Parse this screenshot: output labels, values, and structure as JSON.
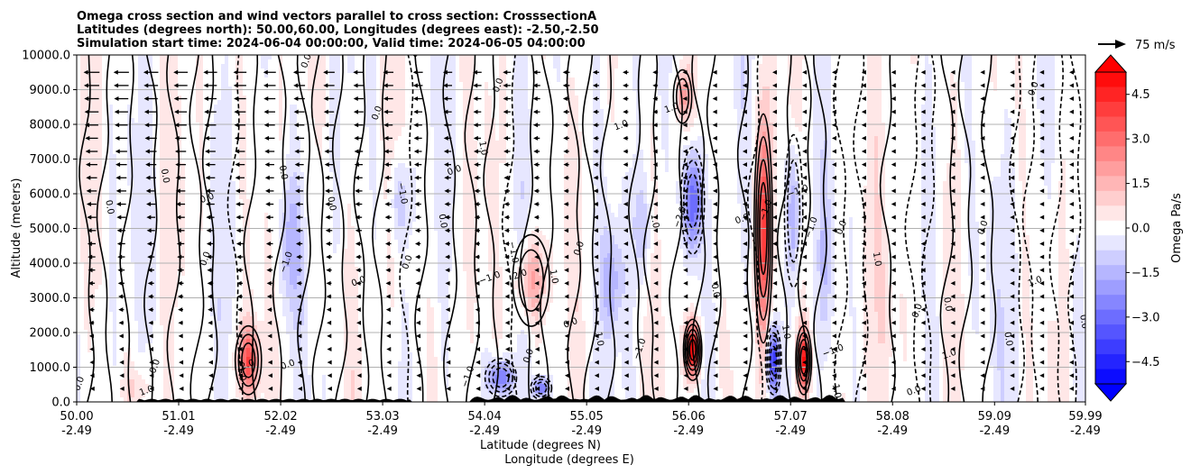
{
  "chart_data": {
    "type": "heatmap",
    "title_lines": [
      "Omega cross section and wind vectors parallel to cross section: CrosssectionA",
      "Latitudes (degrees north): 50.00,60.00, Longitudes (degrees east): -2.50,-2.50",
      "Simulation start time: 2024-06-04 00:00:00, Valid time: 2024-06-05 04:00:00"
    ],
    "ylabel": "Altitude (meters)",
    "xlabel": "Latitude (degrees N)",
    "xlabel2": "Longitude (degrees E)",
    "ylim": [
      0,
      10000
    ],
    "xlim": [
      50.0,
      59.99
    ],
    "y_ticks": [
      0,
      1000,
      2000,
      3000,
      4000,
      5000,
      6000,
      7000,
      8000,
      9000,
      10000
    ],
    "y_tick_labels": [
      "0.0",
      "1000.0",
      "2000.0",
      "3000.0",
      "4000.0",
      "5000.0",
      "6000.0",
      "7000.0",
      "8000.0",
      "9000.0",
      "10000.0"
    ],
    "x_ticks": [
      {
        "lat": 50.0,
        "lat_label": "50.00",
        "lon_label": "-2.49"
      },
      {
        "lat": 51.01,
        "lat_label": "51.01",
        "lon_label": "-2.49"
      },
      {
        "lat": 52.02,
        "lat_label": "52.02",
        "lon_label": "-2.49"
      },
      {
        "lat": 53.03,
        "lat_label": "53.03",
        "lon_label": "-2.49"
      },
      {
        "lat": 54.04,
        "lat_label": "54.04",
        "lon_label": "-2.49"
      },
      {
        "lat": 55.05,
        "lat_label": "55.05",
        "lon_label": "-2.49"
      },
      {
        "lat": 56.06,
        "lat_label": "56.06",
        "lon_label": "-2.49"
      },
      {
        "lat": 57.07,
        "lat_label": "57.07",
        "lon_label": "-2.49"
      },
      {
        "lat": 58.08,
        "lat_label": "58.08",
        "lon_label": "-2.49"
      },
      {
        "lat": 59.09,
        "lat_label": "59.09",
        "lon_label": "-2.49"
      },
      {
        "lat": 59.99,
        "lat_label": "59.99",
        "lon_label": "-2.49"
      }
    ],
    "grid": "horizontal",
    "colorbar": {
      "label": "Omega Pa/s",
      "range": [
        -5.25,
        5.25
      ],
      "levels": 21,
      "tick_values": [
        4.5,
        3.0,
        1.5,
        0.0,
        -1.5,
        -3.0,
        -4.5
      ],
      "tick_labels": [
        "4.5",
        "3.0",
        "1.5",
        "0.0",
        "−1.5",
        "−3.0",
        "−4.5"
      ],
      "low_color": "#0000ff",
      "high_color": "#ff0000",
      "mid_color": "#ffffff",
      "extend": "both"
    },
    "wind_key": {
      "label": "75 m/s",
      "speed": 75
    },
    "omega_features": [
      {
        "lat": 51.7,
        "alt_center": 1200,
        "alt_spread": 900,
        "width": 0.1,
        "value": 3.5
      },
      {
        "lat": 52.1,
        "alt_center": 4500,
        "alt_spread": 2000,
        "width": 0.12,
        "value": -1.5
      },
      {
        "lat": 53.2,
        "alt_center": 5800,
        "alt_spread": 1200,
        "width": 0.1,
        "value": -1.2
      },
      {
        "lat": 54.5,
        "alt_center": 3500,
        "alt_spread": 1200,
        "width": 0.14,
        "value": 2.0
      },
      {
        "lat": 54.2,
        "alt_center": 700,
        "alt_spread": 500,
        "width": 0.12,
        "value": -3.0
      },
      {
        "lat": 54.6,
        "alt_center": 400,
        "alt_spread": 300,
        "width": 0.08,
        "value": -3.0
      },
      {
        "lat": 55.3,
        "alt_center": 3500,
        "alt_spread": 1500,
        "width": 0.1,
        "value": -1.5
      },
      {
        "lat": 55.6,
        "alt_center": 5000,
        "alt_spread": 1500,
        "width": 0.1,
        "value": -1.2
      },
      {
        "lat": 56.1,
        "alt_center": 5800,
        "alt_spread": 1400,
        "width": 0.09,
        "value": -3.5
      },
      {
        "lat": 56.1,
        "alt_center": 1500,
        "alt_spread": 800,
        "width": 0.07,
        "value": 5.5
      },
      {
        "lat": 56.0,
        "alt_center": 8800,
        "alt_spread": 700,
        "width": 0.07,
        "value": 2.0
      },
      {
        "lat": 56.8,
        "alt_center": 5000,
        "alt_spread": 3000,
        "width": 0.07,
        "value": 4.0
      },
      {
        "lat": 56.9,
        "alt_center": 1200,
        "alt_spread": 900,
        "width": 0.06,
        "value": -4.0
      },
      {
        "lat": 57.1,
        "alt_center": 5500,
        "alt_spread": 2000,
        "width": 0.07,
        "value": -2.0
      },
      {
        "lat": 57.2,
        "alt_center": 1200,
        "alt_spread": 900,
        "width": 0.06,
        "value": 4.5
      },
      {
        "lat": 57.4,
        "alt_center": 4000,
        "alt_spread": 2200,
        "width": 0.06,
        "value": -1.0
      },
      {
        "lat": 50.6,
        "alt_center": 400,
        "alt_spread": 600,
        "width": 0.15,
        "value": 0.7
      },
      {
        "lat": 58.1,
        "alt_center": 2500,
        "alt_spread": 2500,
        "width": 0.2,
        "value": 0.5
      },
      {
        "lat": 59.0,
        "alt_center": 4000,
        "alt_spread": 3500,
        "width": 0.25,
        "value": -0.4
      }
    ],
    "contour_labels": [
      {
        "lat": 50.05,
        "alt": 500,
        "text": "0.0"
      },
      {
        "lat": 50.3,
        "alt": 5600,
        "text": "0.0"
      },
      {
        "lat": 50.7,
        "alt": 250,
        "text": "1.0"
      },
      {
        "lat": 50.8,
        "alt": 1000,
        "text": "0.0"
      },
      {
        "lat": 50.85,
        "alt": 6500,
        "text": "0.0"
      },
      {
        "lat": 51.3,
        "alt": 5800,
        "text": "0.0"
      },
      {
        "lat": 51.3,
        "alt": 4100,
        "text": "0.0"
      },
      {
        "lat": 51.6,
        "alt": 900,
        "text": "−1.0"
      },
      {
        "lat": 51.7,
        "alt": 1000,
        "text": "2.0"
      },
      {
        "lat": 52.1,
        "alt": 4000,
        "text": "−1.0"
      },
      {
        "lat": 52.02,
        "alt": 6600,
        "text": "0.0"
      },
      {
        "lat": 52.1,
        "alt": 1000,
        "text": "0.0"
      },
      {
        "lat": 52.3,
        "alt": 9800,
        "text": "0.0"
      },
      {
        "lat": 52.5,
        "alt": 5700,
        "text": "0.0"
      },
      {
        "lat": 52.8,
        "alt": 3400,
        "text": "0.0"
      },
      {
        "lat": 53.0,
        "alt": 8300,
        "text": "0.0"
      },
      {
        "lat": 53.2,
        "alt": 6000,
        "text": "−1.0"
      },
      {
        "lat": 53.4,
        "alt": 10000,
        "text": "0.0"
      },
      {
        "lat": 53.3,
        "alt": 4000,
        "text": "0.0"
      },
      {
        "lat": 53.6,
        "alt": 5200,
        "text": "0.0"
      },
      {
        "lat": 53.75,
        "alt": 6600,
        "text": "0.0"
      },
      {
        "lat": 53.9,
        "alt": 700,
        "text": "−1.0"
      },
      {
        "lat": 54.0,
        "alt": 7300,
        "text": "1.0"
      },
      {
        "lat": 54.1,
        "alt": 3500,
        "text": "−1.0"
      },
      {
        "lat": 54.2,
        "alt": 9100,
        "text": "0.0"
      },
      {
        "lat": 54.3,
        "alt": 4300,
        "text": "−1.0"
      },
      {
        "lat": 54.4,
        "alt": 3600,
        "text": "2.0"
      },
      {
        "lat": 54.5,
        "alt": 1300,
        "text": "0.0"
      },
      {
        "lat": 54.7,
        "alt": 3600,
        "text": "1.0"
      },
      {
        "lat": 54.9,
        "alt": 2200,
        "text": "0.0"
      },
      {
        "lat": 55.0,
        "alt": 4400,
        "text": "0.0"
      },
      {
        "lat": 55.15,
        "alt": 1800,
        "text": "1.0"
      },
      {
        "lat": 55.4,
        "alt": 7900,
        "text": "1.0"
      },
      {
        "lat": 55.6,
        "alt": 1500,
        "text": "−1.0"
      },
      {
        "lat": 55.7,
        "alt": 5200,
        "text": "1.0"
      },
      {
        "lat": 55.9,
        "alt": 8400,
        "text": "1.0"
      },
      {
        "lat": 56.0,
        "alt": 5300,
        "text": "−2.0"
      },
      {
        "lat": 56.3,
        "alt": 3200,
        "text": "0.0"
      },
      {
        "lat": 56.6,
        "alt": 5200,
        "text": "0.0"
      },
      {
        "lat": 56.85,
        "alt": 5500,
        "text": "−1.0"
      },
      {
        "lat": 57.0,
        "alt": 2000,
        "text": "1.0"
      },
      {
        "lat": 57.15,
        "alt": 6000,
        "text": "−1.0"
      },
      {
        "lat": 57.3,
        "alt": 5000,
        "text": "−1.0"
      },
      {
        "lat": 57.5,
        "alt": 300,
        "text": "1.0"
      },
      {
        "lat": 57.5,
        "alt": 1400,
        "text": "−1.0"
      },
      {
        "lat": 57.6,
        "alt": 5000,
        "text": "0.0"
      },
      {
        "lat": 57.9,
        "alt": 4100,
        "text": "1.0"
      },
      {
        "lat": 58.3,
        "alt": 250,
        "text": "0.0"
      },
      {
        "lat": 58.35,
        "alt": 2600,
        "text": "0.0"
      },
      {
        "lat": 58.6,
        "alt": 2800,
        "text": "0.0"
      },
      {
        "lat": 58.65,
        "alt": 1300,
        "text": "1.0"
      },
      {
        "lat": 59.0,
        "alt": 5000,
        "text": "0.0"
      },
      {
        "lat": 59.2,
        "alt": 1800,
        "text": "0.0"
      },
      {
        "lat": 59.5,
        "alt": 3400,
        "text": "1.0"
      },
      {
        "lat": 59.5,
        "alt": 9000,
        "text": "0.0"
      },
      {
        "lat": 59.95,
        "alt": 2300,
        "text": "0.0"
      }
    ]
  }
}
